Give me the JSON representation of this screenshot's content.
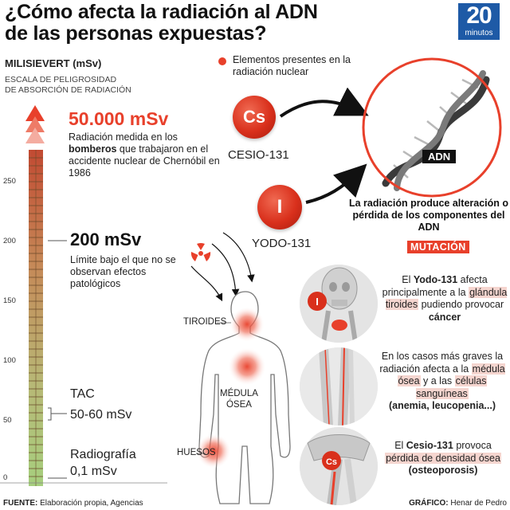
{
  "header": {
    "title_line1": "¿Cómo afecta la radiación al ADN",
    "title_line2": "de las personas expuestas?",
    "logo_number": "20",
    "logo_word": "minutos"
  },
  "scale": {
    "unit_title": "MILISIEVERT (mSv)",
    "subtitle_line1": "ESCALA DE PELIGROSIDAD",
    "subtitle_line2": "DE ABSORCIÓN DE RADIACIÓN",
    "axis_ticks": [
      "250",
      "200",
      "150",
      "100",
      "50",
      "0"
    ],
    "levels": {
      "top": {
        "value": "50.000 mSv",
        "desc_pre": "Radiación medida en los ",
        "desc_bold": "bomberos",
        "desc_post": " que trabajaron en el accidente nuclear de Chernóbil en 1986"
      },
      "mid": {
        "value": "200 mSv",
        "desc": "Límite bajo el que no se observan efectos patológicos"
      },
      "tac": {
        "label": "TAC",
        "value": "50-60 mSv"
      },
      "xray": {
        "label": "Radiografía",
        "value": "0,1 mSv"
      }
    },
    "colors": {
      "accent": "#e8402b"
    }
  },
  "elements": {
    "legend": "Elementos presentes en la radiación nuclear",
    "cesium": {
      "symbol": "Cs",
      "name": "CESIO-131"
    },
    "iodine": {
      "symbol": "I",
      "name": "YODO-131"
    }
  },
  "dna": {
    "tag": "ADN",
    "effect": "La radiación produce alteración o pérdida de los componentes del ADN",
    "mutation": "MUTACIÓN"
  },
  "body_labels": {
    "thyroid": "TIROIDES",
    "marrow_line1": "MÉDULA",
    "marrow_line2": "ÓSEA",
    "bones": "HUESOS"
  },
  "effects": {
    "thyroid": {
      "p1": "El ",
      "bold1": "Yodo-131",
      "p2": " afecta principalmente a la ",
      "hl1": "glándula tiroides",
      "p3": " pudiendo provocar ",
      "bold2": "cáncer"
    },
    "marrow": {
      "p1": "En los casos más graves la radiación afecta a la ",
      "hl1": "médula ósea",
      "p2": " y a las ",
      "hl2": "células sanguíneas",
      "bold1": "(anemia, leucopenia...)"
    },
    "bone": {
      "p1": "El ",
      "bold1": "Cesio-131",
      "p2": " provoca ",
      "hl1": "pérdida de densidad ósea",
      "bold2": "(osteoporosis)",
      "icon_symbol": "Cs"
    },
    "thyroid_icon_symbol": "I"
  },
  "footer": {
    "source_label": "FUENTE:",
    "source": " Elaboración propia, Agencias",
    "graphic_label": "GRÁFICO:",
    "graphic": " Henar de Pedro"
  }
}
